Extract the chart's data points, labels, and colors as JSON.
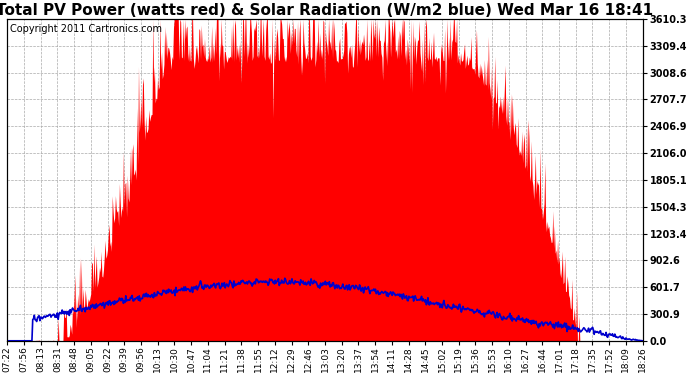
{
  "title": "Total PV Power (watts red) & Solar Radiation (W/m2 blue) Wed Mar 16 18:41",
  "copyright": "Copyright 2011 Cartronics.com",
  "ylabel_right_ticks": [
    0.0,
    300.9,
    601.7,
    902.6,
    1203.4,
    1504.3,
    1805.1,
    2106.0,
    2406.9,
    2707.7,
    3008.6,
    3309.4,
    3610.3
  ],
  "x_tick_labels": [
    "07:22",
    "07:56",
    "08:13",
    "08:31",
    "08:48",
    "09:05",
    "09:22",
    "09:39",
    "09:56",
    "10:13",
    "10:30",
    "10:47",
    "11:04",
    "11:21",
    "11:38",
    "11:55",
    "12:12",
    "12:29",
    "12:46",
    "13:03",
    "13:20",
    "13:37",
    "13:54",
    "14:11",
    "14:28",
    "14:45",
    "15:02",
    "15:19",
    "15:36",
    "15:53",
    "16:10",
    "16:27",
    "16:44",
    "17:01",
    "17:18",
    "17:35",
    "17:52",
    "18:09",
    "18:26"
  ],
  "background_color": "#ffffff",
  "plot_bg_color": "#ffffff",
  "grid_color": "#aaaaaa",
  "title_fontsize": 11,
  "copyright_fontsize": 7,
  "tick_fontsize": 6.5,
  "pv_color": "#ff0000",
  "solar_color": "#0000cc",
  "ylim": [
    0.0,
    3610.3
  ],
  "n_points": 800
}
